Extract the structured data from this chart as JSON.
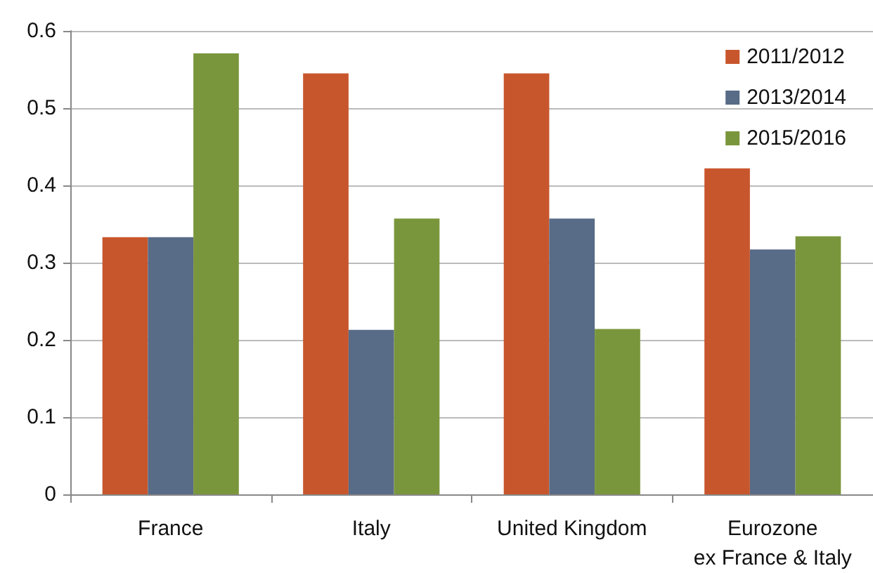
{
  "chart_data": {
    "type": "bar",
    "categories": [
      "France",
      "Italy",
      "United Kingdom",
      "Eurozone\nex France & Italy"
    ],
    "series": [
      {
        "name": "2011/2012",
        "color": "#c8562c",
        "values": [
          0.333,
          0.545,
          0.545,
          0.422
        ]
      },
      {
        "name": "2013/2014",
        "color": "#586b87",
        "values": [
          0.333,
          0.213,
          0.357,
          0.317
        ]
      },
      {
        "name": "2015/2016",
        "color": "#7a963c",
        "values": [
          0.571,
          0.357,
          0.214,
          0.334
        ]
      }
    ],
    "ylim": [
      0,
      0.6
    ],
    "yticks": [
      0,
      0.1,
      0.2,
      0.3,
      0.4,
      0.5,
      0.6
    ],
    "grid": "y",
    "legend": "top right"
  }
}
